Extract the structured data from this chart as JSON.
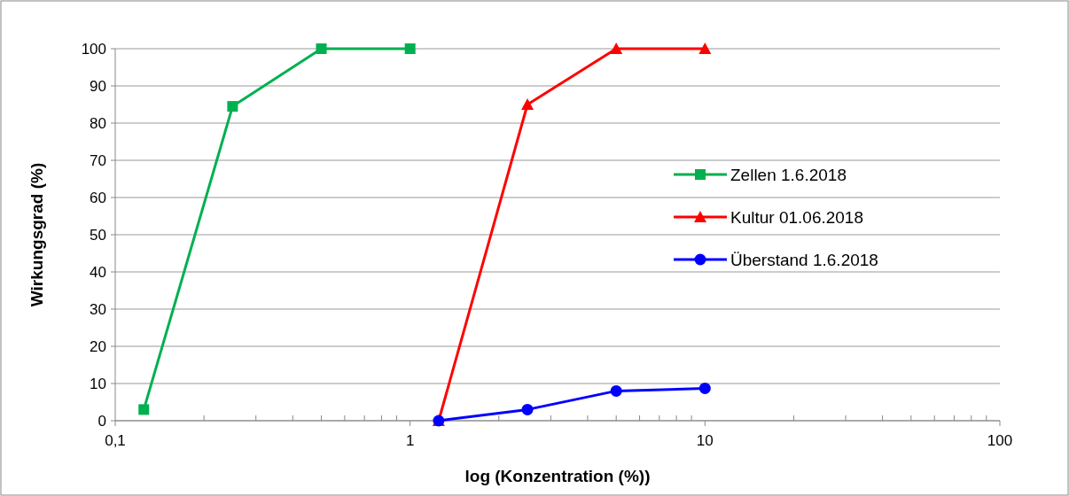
{
  "chart_data": {
    "type": "line",
    "xlabel": "log (Konzentration (%))",
    "ylabel": "Wirkungsgrad (%)",
    "log": "x",
    "grid": "y",
    "legend": "right",
    "line_style": "solid",
    "xlim": [
      0.1,
      100
    ],
    "xticks": [
      {
        "value": 0.1,
        "label": "0,1"
      },
      {
        "value": 0.2,
        "label": null
      },
      {
        "value": 0.3,
        "label": null
      },
      {
        "value": 0.4,
        "label": null
      },
      {
        "value": 0.5,
        "label": null
      },
      {
        "value": 0.6,
        "label": null
      },
      {
        "value": 0.7,
        "label": null
      },
      {
        "value": 0.8,
        "label": null
      },
      {
        "value": 0.9,
        "label": null
      },
      1,
      {
        "value": 2,
        "label": null
      },
      {
        "value": 3,
        "label": null
      },
      {
        "value": 4,
        "label": null
      },
      {
        "value": 5,
        "label": null
      },
      {
        "value": 6,
        "label": null
      },
      {
        "value": 7,
        "label": null
      },
      {
        "value": 8,
        "label": null
      },
      {
        "value": 9,
        "label": null
      },
      10,
      {
        "value": 20,
        "label": null
      },
      {
        "value": 30,
        "label": null
      },
      {
        "value": 40,
        "label": null
      },
      {
        "value": 50,
        "label": null
      },
      {
        "value": 60,
        "label": null
      },
      {
        "value": 70,
        "label": null
      },
      {
        "value": 80,
        "label": null
      },
      {
        "value": 90,
        "label": null
      },
      100
    ],
    "ylim": [
      0,
      100
    ],
    "yticks": [
      0,
      10,
      20,
      30,
      40,
      50,
      60,
      70,
      80,
      90,
      100
    ],
    "series": [
      {
        "name": "Zellen 1.6.2018",
        "color": "#00b050",
        "marker": "square",
        "x": [
          0.125,
          0.25,
          0.5,
          1
        ],
        "values": [
          3,
          84.5,
          100,
          100
        ]
      },
      {
        "name": "Kultur 01.06.2018",
        "color": "#ff0000",
        "marker": "triangle",
        "x": [
          1.25,
          2.5,
          5,
          10
        ],
        "values": [
          0,
          85,
          100,
          100
        ]
      },
      {
        "name": "Überstand 1.6.2018",
        "color": "#0000ff",
        "marker": "circle",
        "x": [
          1.25,
          2.5,
          5,
          10
        ],
        "values": [
          0,
          3,
          8,
          8.7
        ]
      }
    ]
  }
}
